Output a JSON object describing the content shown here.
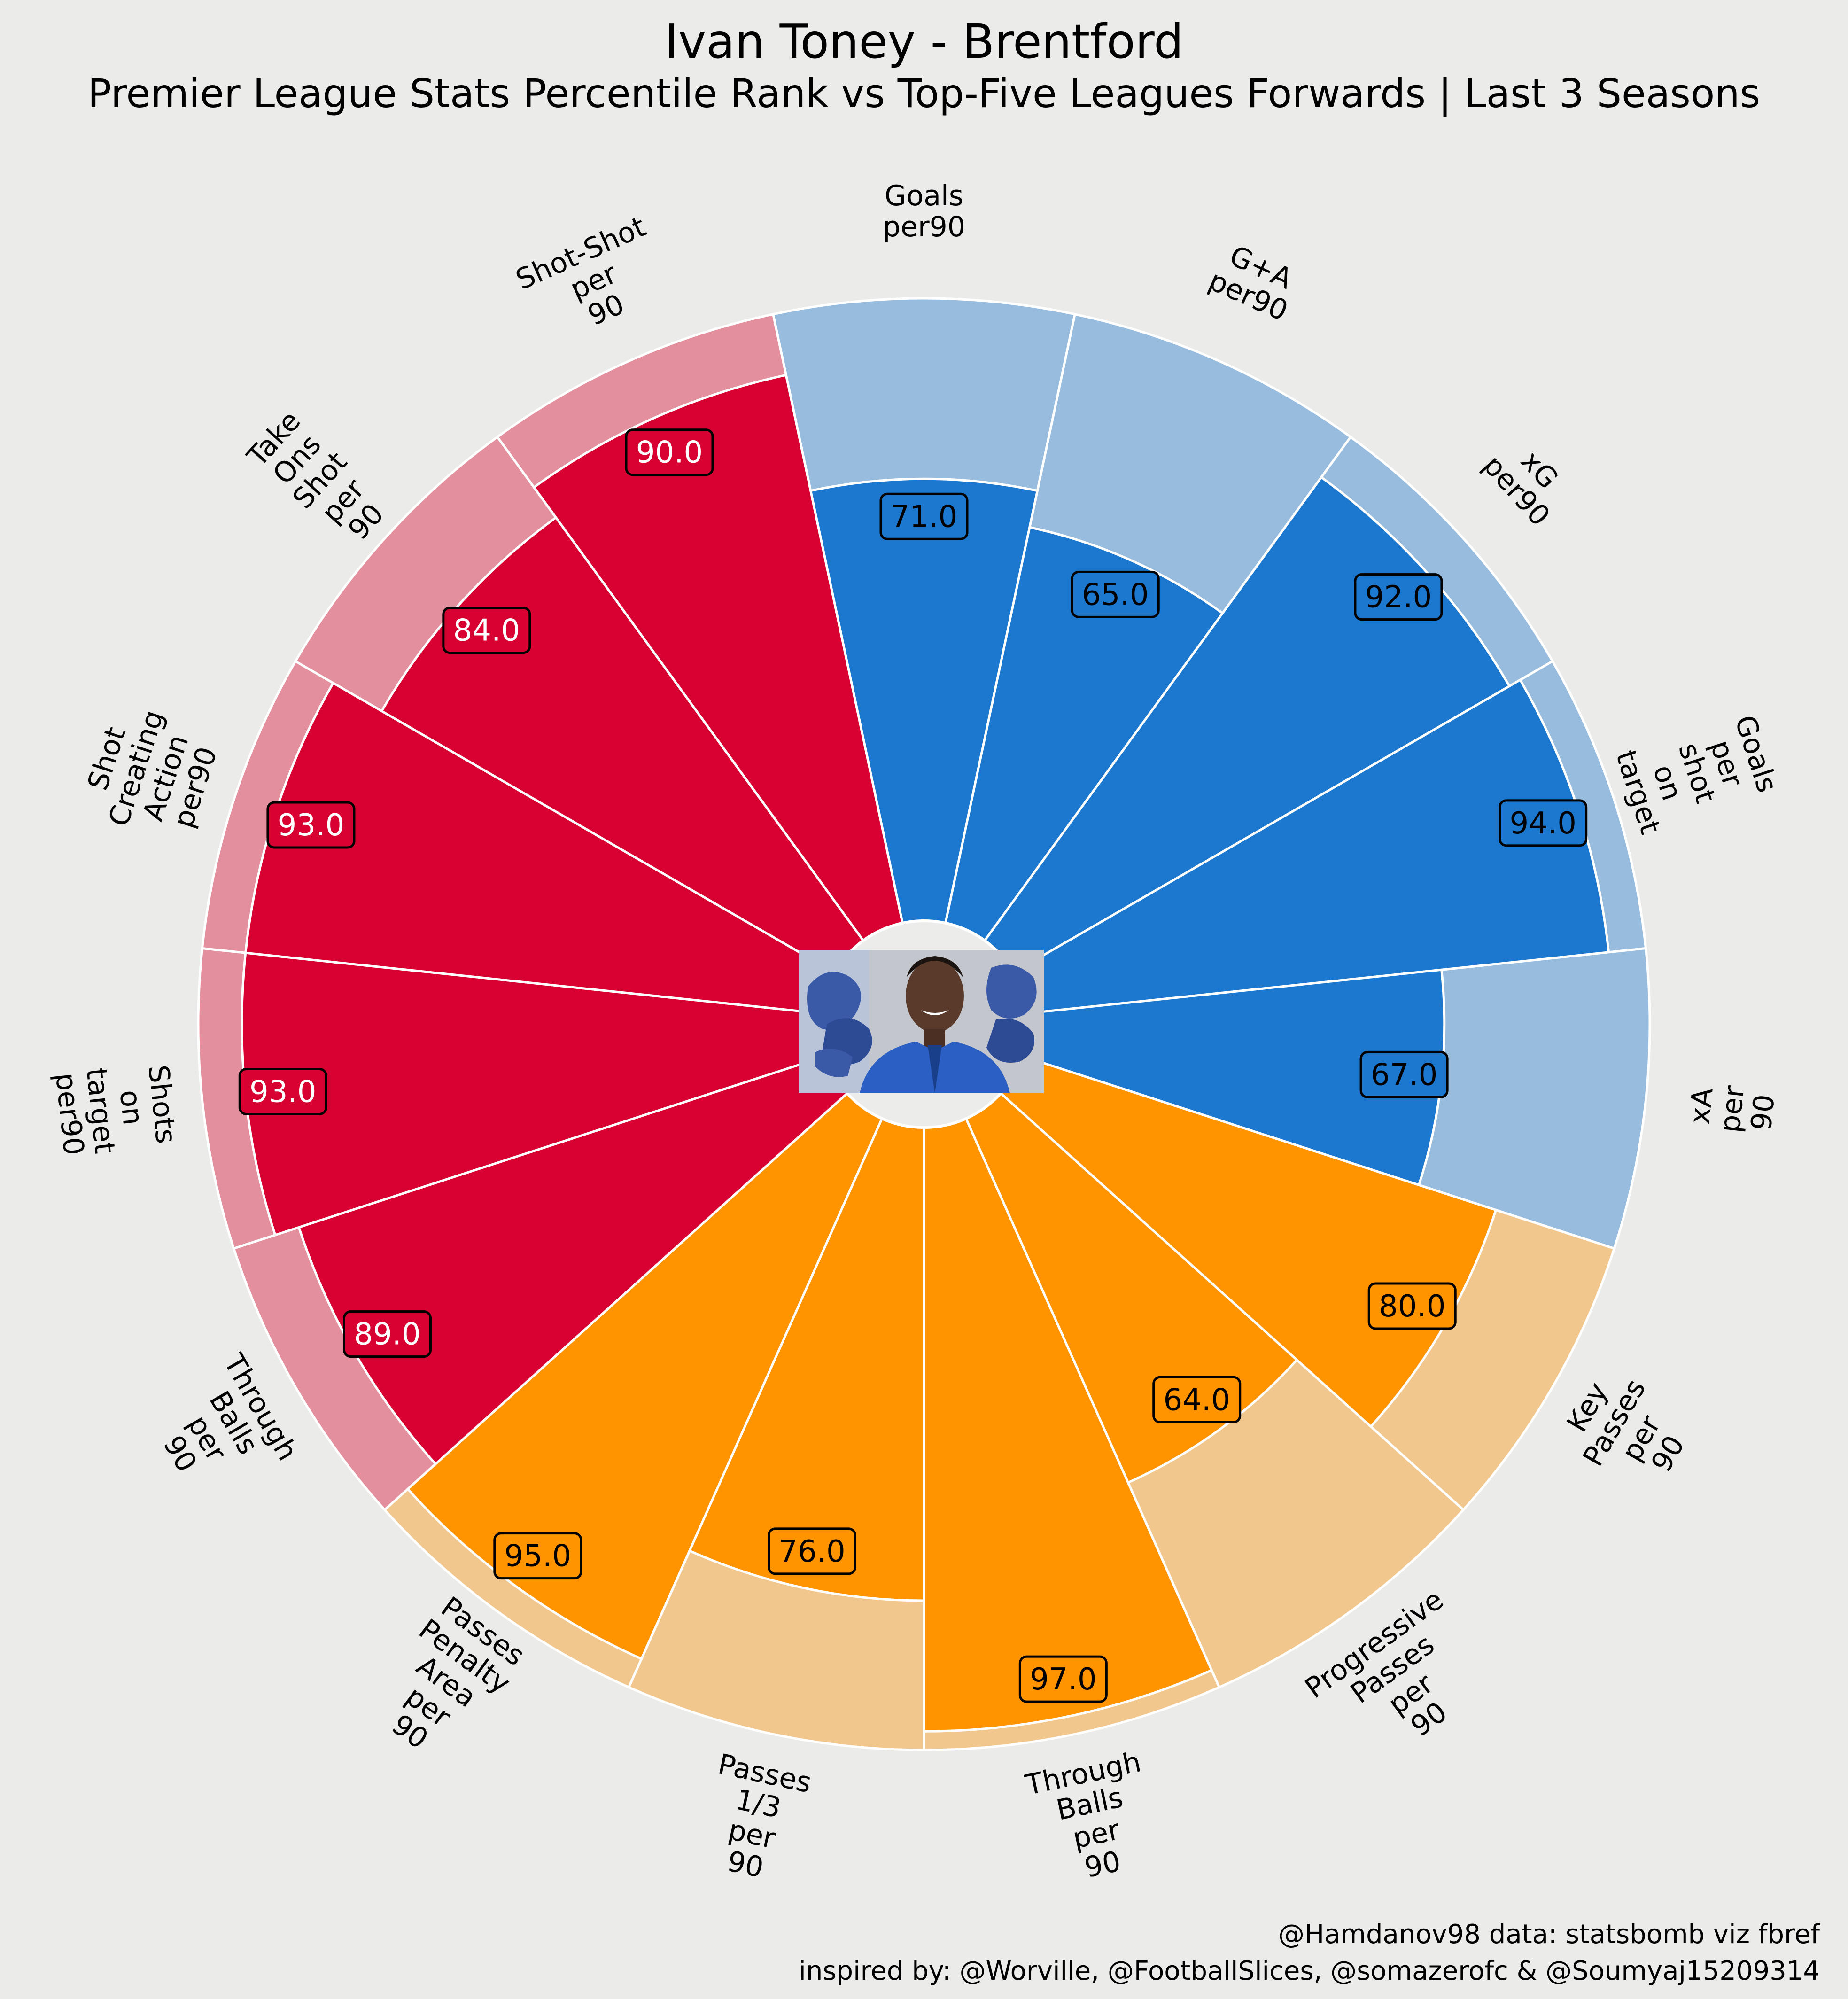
{
  "title": "Ivan Toney - Brentford",
  "subtitle": "Premier League Stats Percentile Rank vs Top-Five Leagues Forwards | Last 3 Seasons",
  "credits": {
    "line1": "@Hamdanov98 data: statsbomb viz fbref",
    "line2": "inspired by: @Worville, @FootballSlices, @somazerofc & @Soumyaj15209314"
  },
  "center_image": "player-photo",
  "chart_data": {
    "type": "radial-bar",
    "value_range": [
      0,
      100
    ],
    "colors": {
      "blue": "#1c78cf",
      "blue_bg": "#98bcde",
      "orange": "#ff9300",
      "orange_bg": "#f1c78d",
      "red": "#d70232",
      "red_bg": "#e48f9d",
      "background": "#ebebe9"
    },
    "slices": [
      {
        "label": "Goals\nper90",
        "value": 71.0,
        "group": "blue"
      },
      {
        "label": "G+A\nper90",
        "value": 65.0,
        "group": "blue"
      },
      {
        "label": "xG\nper90",
        "value": 92.0,
        "group": "blue"
      },
      {
        "label": "Goals\nper\nshot\non\ntarget",
        "value": 94.0,
        "group": "blue"
      },
      {
        "label": "xA\nper\n90",
        "value": 67.0,
        "group": "blue"
      },
      {
        "label": "Key\nPasses\nper\n90",
        "value": 80.0,
        "group": "orange"
      },
      {
        "label": "Progressive\nPasses\nper\n90",
        "value": 64.0,
        "group": "orange"
      },
      {
        "label": "Through\nBalls\nper\n90",
        "value": 97.0,
        "group": "orange"
      },
      {
        "label": "Passes\n1/3\nper\n90",
        "value": 76.0,
        "group": "orange"
      },
      {
        "label": "Passes\nPenalty\nArea\nper\n90",
        "value": 95.0,
        "group": "orange"
      },
      {
        "label": "Through\nBalls\nper\n90",
        "value": 89.0,
        "group": "red"
      },
      {
        "label": "Shots\non\ntarget\nper90",
        "value": 93.0,
        "group": "red"
      },
      {
        "label": "Shot\nCreating\nAction\nper90",
        "value": 93.0,
        "group": "red"
      },
      {
        "label": "Take\nOns\nShot\nper\n90",
        "value": 84.0,
        "group": "red"
      },
      {
        "label": "Shot-Shot\nper\n90",
        "value": 90.0,
        "group": "red"
      }
    ]
  }
}
